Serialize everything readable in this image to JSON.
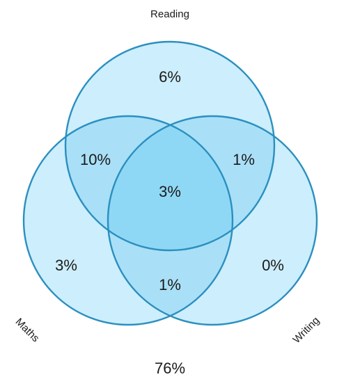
{
  "sets": [
    {
      "id": "reading",
      "label": "Reading"
    },
    {
      "id": "maths",
      "label": "Maths"
    },
    {
      "id": "writing",
      "label": "Writing"
    }
  ],
  "regions": {
    "reading_only": "6%",
    "maths_only": "3%",
    "writing_only": "0%",
    "reading_maths": "10%",
    "reading_writing": "1%",
    "maths_writing": "1%",
    "all_three": "3%",
    "none": "76%"
  },
  "colors": {
    "fill": "#cdeefc",
    "fill_opacity_layer": "#8fd8f5",
    "stroke": "#2b8fbf",
    "text": "#1a1a1a"
  }
}
